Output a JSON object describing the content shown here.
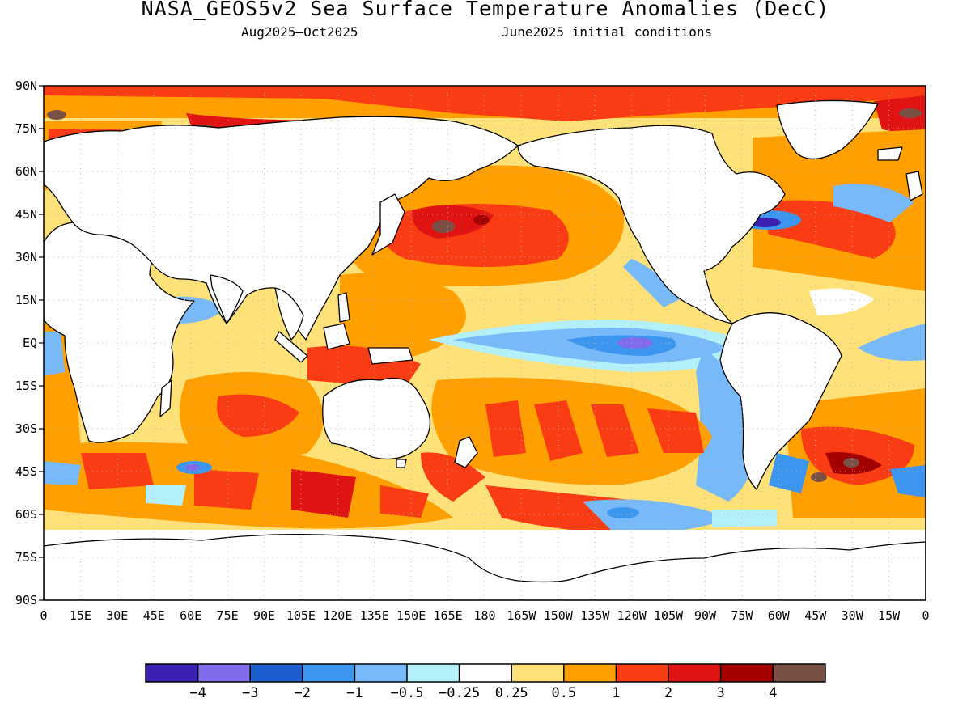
{
  "title": "NASA_GEOS5v2 Sea Surface Temperature Anomalies (DecC)",
  "subtitle_period": "Aug2025—Oct2025",
  "subtitle_init": "June2025 initial conditions",
  "lat_labels": [
    "90N",
    "75N",
    "60N",
    "45N",
    "30N",
    "15N",
    "EQ",
    "15S",
    "30S",
    "45S",
    "60S",
    "75S",
    "90S"
  ],
  "lon_labels": [
    "0",
    "15E",
    "30E",
    "45E",
    "60E",
    "75E",
    "90E",
    "105E",
    "120E",
    "135E",
    "150E",
    "165E",
    "180",
    "165W",
    "150W",
    "135W",
    "120W",
    "105W",
    "90W",
    "75W",
    "60W",
    "45W",
    "30W",
    "15W",
    "0"
  ],
  "colorbar": {
    "colors": [
      "#3c20b4",
      "#7e6ceb",
      "#1a5fcd",
      "#3c96f0",
      "#78b9fa",
      "#b4f0fa",
      "#ffffff",
      "#ffe179",
      "#ffa000",
      "#fa3c14",
      "#e11414",
      "#a50000",
      "#7a5046"
    ],
    "labels": [
      "−4",
      "−3",
      "−2",
      "−1",
      "−0.5",
      "−0.25",
      "0.25",
      "0.5",
      "1",
      "2",
      "3",
      "4"
    ]
  },
  "palette": {
    "land": "#ffffff",
    "coast": "#000000",
    "grid": "#b4b4b4"
  }
}
